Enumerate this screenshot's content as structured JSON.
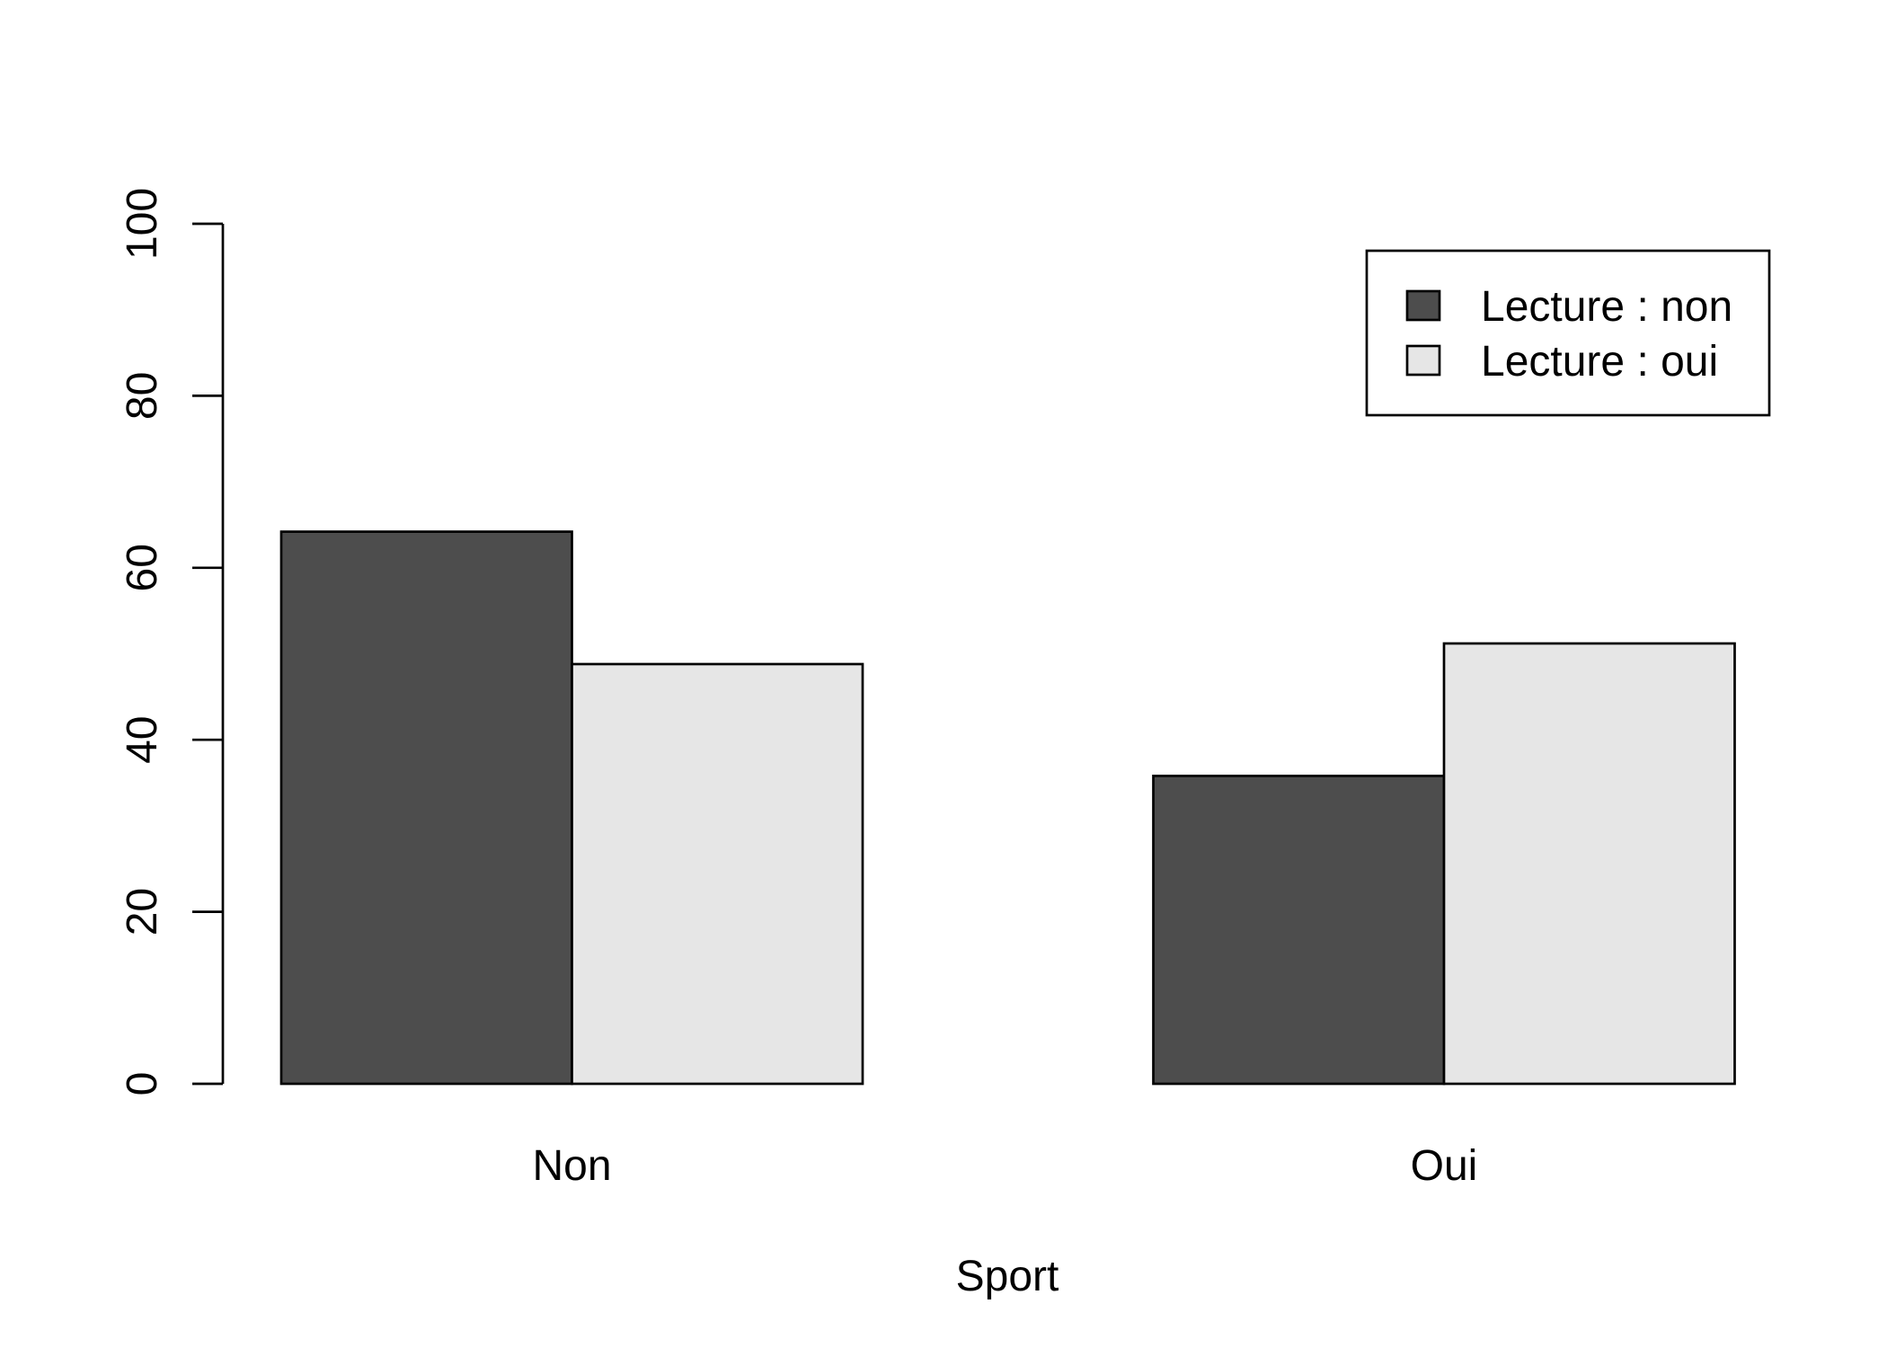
{
  "chart_data": {
    "type": "bar",
    "layout": "grouped",
    "title": "",
    "xlabel": "Sport",
    "ylabel": "",
    "categories": [
      "Non",
      "Oui"
    ],
    "series": [
      {
        "name": "Lecture : non",
        "values": [
          64.2,
          35.8
        ],
        "color": "#4d4d4d"
      },
      {
        "name": "Lecture : oui",
        "values": [
          48.8,
          51.2
        ],
        "color": "#e6e6e6"
      }
    ],
    "ylim": [
      0,
      100
    ],
    "yticks": [
      0,
      20,
      40,
      60,
      80,
      100
    ],
    "grid": false,
    "legend": {
      "position": "top-right"
    }
  }
}
